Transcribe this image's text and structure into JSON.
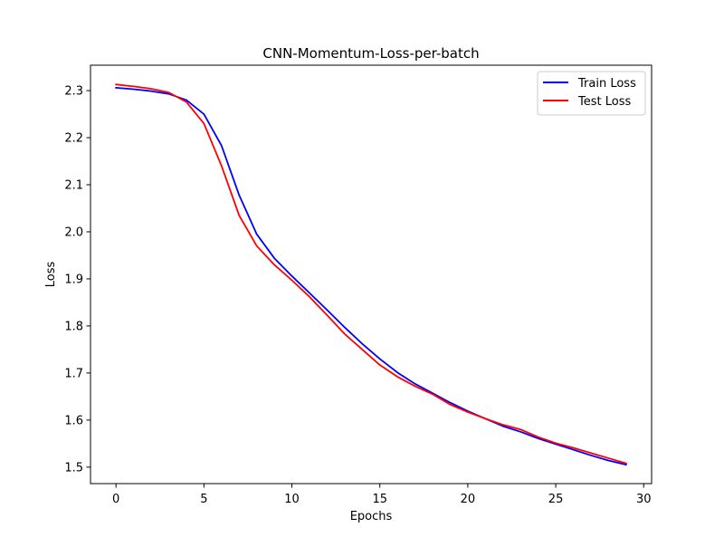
{
  "chart_data": {
    "type": "line",
    "title": "CNN-Momentum-Loss-per-batch",
    "xlabel": "Epochs",
    "ylabel": "Loss",
    "xlim": [
      -1.45,
      30.45
    ],
    "ylim": [
      1.465,
      2.354
    ],
    "xticks": [
      0,
      5,
      10,
      15,
      20,
      25,
      30
    ],
    "xtick_labels": [
      "0",
      "5",
      "10",
      "15",
      "20",
      "25",
      "30"
    ],
    "yticks": [
      1.5,
      1.6,
      1.7,
      1.8,
      1.9,
      2.0,
      2.1,
      2.2,
      2.3
    ],
    "ytick_labels": [
      "1.5",
      "1.6",
      "1.7",
      "1.8",
      "1.9",
      "2.0",
      "2.1",
      "2.2",
      "2.3"
    ],
    "grid": false,
    "legend_position": "top-right",
    "x": [
      0,
      1,
      2,
      3,
      4,
      5,
      6,
      7,
      8,
      9,
      10,
      11,
      12,
      13,
      14,
      15,
      16,
      17,
      18,
      19,
      20,
      21,
      22,
      23,
      24,
      25,
      26,
      27,
      28,
      29
    ],
    "series": [
      {
        "name": "Train Loss",
        "color": "#0000ff",
        "values": [
          2.306,
          2.303,
          2.299,
          2.293,
          2.28,
          2.25,
          2.183,
          2.078,
          1.995,
          1.944,
          1.906,
          1.87,
          1.834,
          1.797,
          1.762,
          1.73,
          1.701,
          1.677,
          1.657,
          1.637,
          1.619,
          1.603,
          1.587,
          1.575,
          1.561,
          1.549,
          1.537,
          1.525,
          1.514,
          1.505
        ]
      },
      {
        "name": "Test Loss",
        "color": "#ff0000",
        "values": [
          2.313,
          2.309,
          2.304,
          2.296,
          2.276,
          2.23,
          2.14,
          2.035,
          1.97,
          1.93,
          1.897,
          1.862,
          1.823,
          1.783,
          1.75,
          1.717,
          1.692,
          1.672,
          1.655,
          1.633,
          1.617,
          1.603,
          1.59,
          1.58,
          1.564,
          1.551,
          1.541,
          1.53,
          1.519,
          1.508
        ]
      }
    ]
  }
}
